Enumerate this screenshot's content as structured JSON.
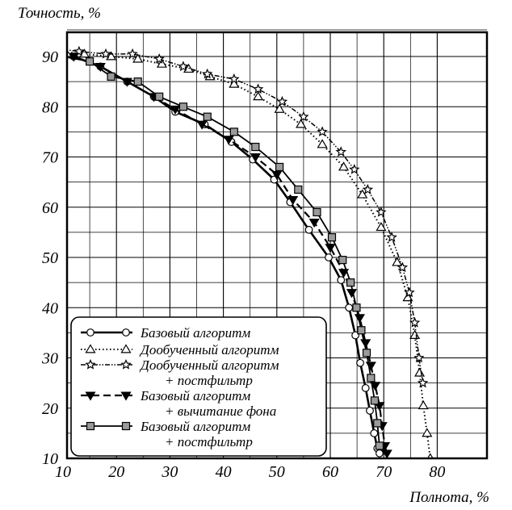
{
  "chart_data": {
    "type": "line",
    "title": "",
    "xlabel": "Полнота, %",
    "ylabel": "Точность, %",
    "xlim": [
      10,
      80
    ],
    "ylim": [
      10,
      90
    ],
    "xticks": [
      "10",
      "20",
      "30",
      "40",
      "50",
      "60",
      "70",
      "80"
    ],
    "yticks": [
      "10",
      "20",
      "30",
      "40",
      "50",
      "60",
      "70",
      "80",
      "90"
    ],
    "grid": true,
    "legend_position": "bottom-left",
    "series": [
      {
        "name": "Базовый алгоритм",
        "line": "solid-thick",
        "marker": "circle-open",
        "color": "#000000",
        "x": [
          12,
          17,
          22,
          27,
          31,
          36.5,
          41.5,
          45.5,
          49.5,
          52.5,
          56,
          59.7,
          62,
          63.5,
          64.7,
          65.6,
          66.6,
          67.4,
          68.2,
          68.8,
          69.2
        ],
        "y": [
          90,
          88,
          85,
          82,
          79,
          76.5,
          73,
          69.5,
          65.5,
          61,
          55.5,
          50,
          45.5,
          40,
          34.5,
          29,
          24,
          19.5,
          15,
          12,
          11
        ]
      },
      {
        "name": "Дообученный алгоритм",
        "line": "dotted",
        "marker": "triangle-open",
        "color": "#000000",
        "x": [
          9.5,
          14,
          19,
          24,
          28.5,
          33.5,
          37.5,
          42,
          46.5,
          50.5,
          54.5,
          58.5,
          62.5,
          66,
          69.5,
          72.5,
          74.5,
          75.8,
          76.7,
          77.4,
          78.1,
          78.7
        ],
        "y": [
          91,
          90.5,
          90,
          89.5,
          88.5,
          87.5,
          86,
          84.5,
          82,
          79.5,
          76.5,
          72.5,
          68,
          62.5,
          56,
          49,
          42,
          34.5,
          27,
          20.5,
          15,
          10
        ]
      },
      {
        "name": "Дообученный алгоритм + постфильтр",
        "line": "dash-dot-dot",
        "marker": "star-open",
        "color": "#000000",
        "x": [
          9.5,
          13,
          18,
          23,
          28,
          32.5,
          37,
          42,
          46.5,
          51,
          55,
          58.5,
          62,
          64.5,
          67,
          69.5,
          71.5,
          73.5,
          74.8,
          75.8,
          76.6,
          77.3
        ],
        "y": [
          91.5,
          91,
          90.5,
          90.5,
          89.5,
          88,
          86.5,
          85.5,
          83.5,
          81,
          78,
          75,
          71,
          67.5,
          63.5,
          59,
          54,
          48,
          43,
          37,
          30,
          25
        ]
      },
      {
        "name": "Базовый алгоритм + вычитание фона",
        "line": "dashed",
        "marker": "triangle-down-filled",
        "color": "#000000",
        "x": [
          12,
          17,
          22,
          27,
          31,
          36,
          41,
          46,
          50,
          53,
          57,
          60,
          62.5,
          64,
          65.5,
          66.6,
          67.6,
          68.4,
          69.2,
          69.7,
          70.2,
          70.6
        ],
        "y": [
          90,
          88,
          85,
          82,
          79.5,
          76.5,
          73.5,
          70,
          66.5,
          61.5,
          57,
          52,
          47,
          43,
          38,
          33,
          28.5,
          24.5,
          20.5,
          16.5,
          12.5,
          11
        ]
      },
      {
        "name": "Базовый алгоритм + постфильтр",
        "line": "solid",
        "marker": "square-filled-gray",
        "color": "#000000",
        "x": [
          10,
          15,
          19,
          24,
          28,
          32.5,
          37,
          42,
          46,
          50.5,
          54,
          57.5,
          60.3,
          62.3,
          63.8,
          64.9,
          65.8,
          66.8,
          67.6,
          68.3,
          68.8,
          69.2
        ],
        "y": [
          90,
          89,
          86,
          85,
          82,
          80,
          78,
          75,
          72,
          68,
          63.5,
          59,
          54,
          49.5,
          45,
          40,
          35.5,
          31,
          26,
          21.5,
          17,
          12.5
        ]
      }
    ]
  }
}
